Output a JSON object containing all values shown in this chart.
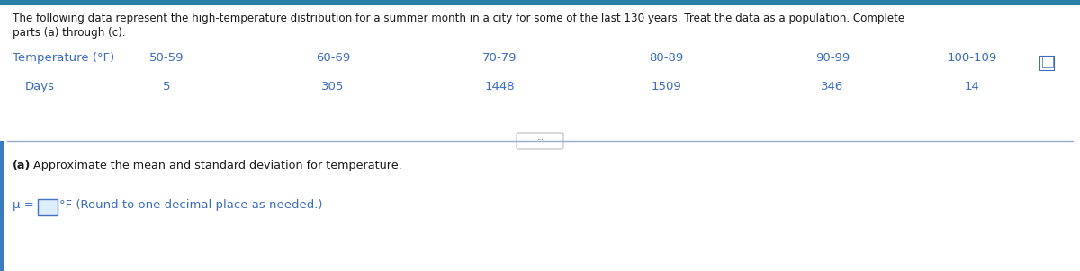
{
  "intro_text_line1": "The following data represent the high-temperature distribution for a summer month in a city for some of the last 130 years. Treat the data as a population. Complete",
  "intro_text_line2": "parts (a) through (c).",
  "row1_label": "Temperature (°F)",
  "row2_label": "Days",
  "temp_ranges": [
    "50-59",
    "60-69",
    "70-79",
    "80-89",
    "90-99",
    "100-109"
  ],
  "days": [
    "5",
    "305",
    "1448",
    "1509",
    "346",
    "14"
  ],
  "part_a_bold": "(a)",
  "part_a_rest": " Approximate the mean and standard deviation for temperature.",
  "mu_text": "μ = ",
  "degree_text": "°F (Round to one decimal place as needed.)",
  "bg_color": "#ffffff",
  "blue_color": "#3b6dbf",
  "dark_text_color": "#1a1a1a",
  "divider_color": "#9aabcc",
  "top_border_color": "#2a7fa8",
  "input_box_border": "#4472c4",
  "ellipsis_border_color": "#bbbbbb",
  "left_bar_color": "#3a7abf"
}
